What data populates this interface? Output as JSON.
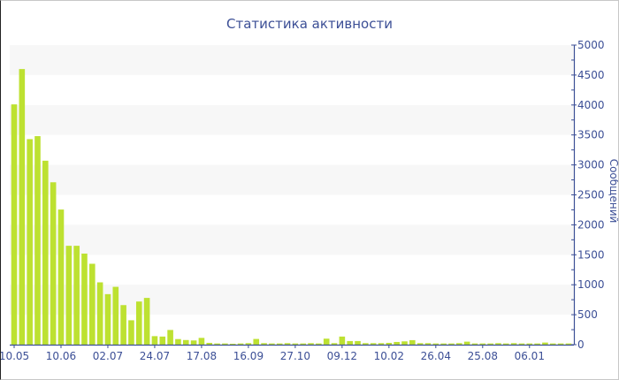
{
  "chart_data": {
    "type": "bar",
    "title": "Статистика активности",
    "ylabel": "Сообщений",
    "xlabel": "",
    "ylim": [
      0,
      5000
    ],
    "y_ticks": [
      0,
      500,
      1000,
      1500,
      2000,
      2500,
      3000,
      3500,
      4000,
      4500,
      5000
    ],
    "y_axis_position": "right",
    "grid": "alternating horizontal bands",
    "x_tick_labels": [
      "10.05",
      "10.06",
      "02.07",
      "24.07",
      "17.08",
      "16.09",
      "27.10",
      "09.12",
      "10.02",
      "26.04",
      "25.08",
      "06.01"
    ],
    "values": [
      4010,
      4600,
      3430,
      3480,
      3070,
      2710,
      2255,
      1650,
      1650,
      1520,
      1350,
      1040,
      843,
      965,
      660,
      407,
      720,
      780,
      142,
      135,
      245,
      93,
      77,
      70,
      113,
      30,
      20,
      20,
      15,
      20,
      25,
      95,
      25,
      20,
      20,
      25,
      20,
      20,
      25,
      20,
      100,
      25,
      135,
      60,
      60,
      25,
      25,
      25,
      30,
      45,
      55,
      75,
      25,
      25,
      20,
      20,
      20,
      25,
      50,
      20,
      20,
      20,
      25,
      20,
      25,
      20,
      20,
      20,
      35,
      20,
      20,
      20
    ],
    "colors": {
      "bar": "#bde131",
      "band": "#f7f7f7",
      "axis": "#3c4f96"
    }
  }
}
